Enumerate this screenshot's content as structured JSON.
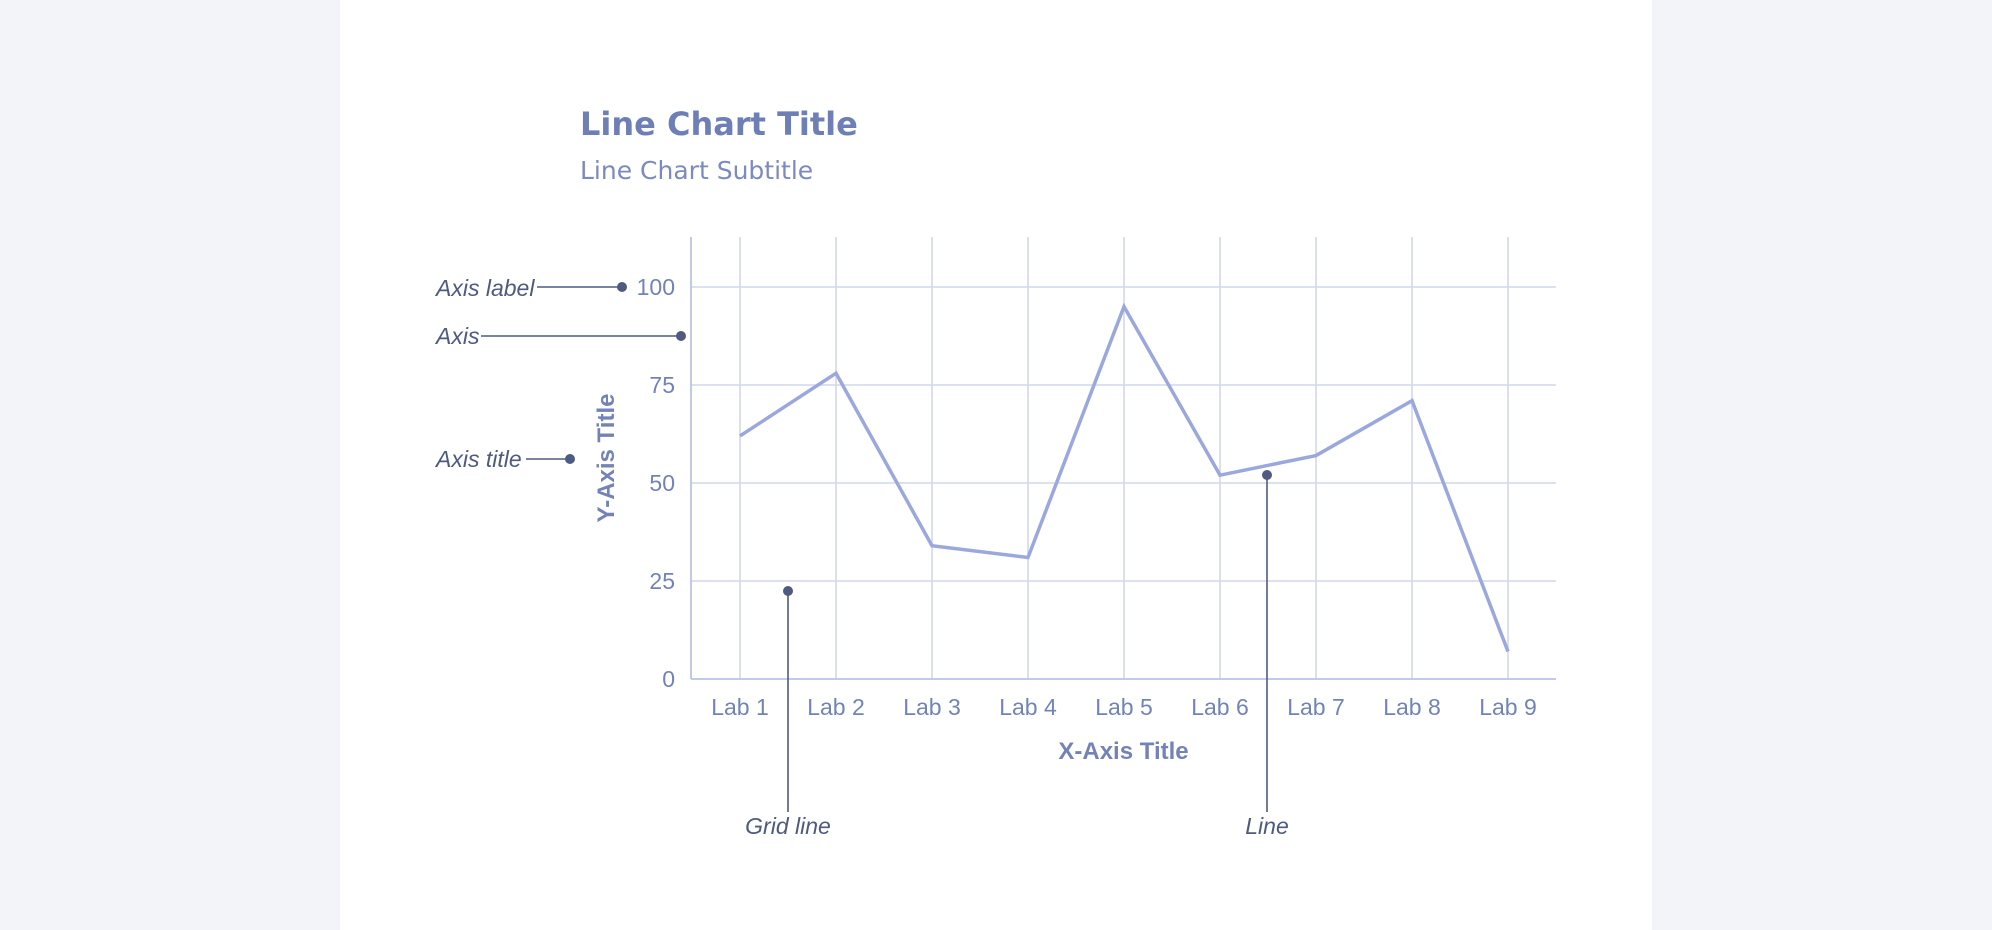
{
  "colors": {
    "page_bg": "#f2f4f9",
    "card_bg": "#ffffff",
    "line": "#9aa8de",
    "grid": "#d0d7ee",
    "text": "#7383b8",
    "annotation": "#4e5a80"
  },
  "chart_data": {
    "type": "line",
    "title": "Line Chart Title",
    "subtitle": "Line Chart Subtitle",
    "xlabel": "X-Axis Title",
    "ylabel": "Y-Axis Title",
    "categories": [
      "Lab 1",
      "Lab 2",
      "Lab 3",
      "Lab 4",
      "Lab 5",
      "Lab 6",
      "Lab 7",
      "Lab 8",
      "Lab 9"
    ],
    "series": [
      {
        "values": [
          62,
          78,
          34,
          31,
          95,
          52,
          57,
          71,
          7
        ]
      }
    ],
    "ylim": [
      0,
      100
    ],
    "yticks": [
      0,
      25,
      50,
      75,
      100
    ],
    "grid": true,
    "legend": "none"
  },
  "annotations": {
    "axis_label": "Axis label",
    "axis": "Axis",
    "axis_title": "Axis title",
    "grid_line": "Grid line",
    "line": "Line"
  }
}
